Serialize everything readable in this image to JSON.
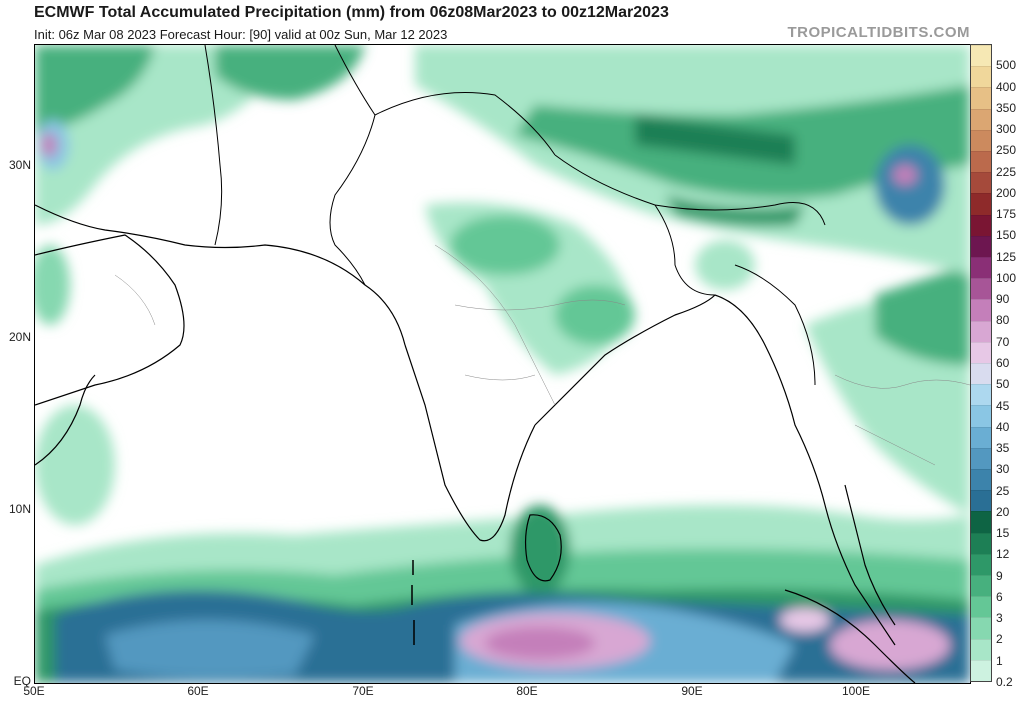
{
  "title": "ECMWF Total Accumulated Precipitation (mm) from 06z08Mar2023 to 00z12Mar2023",
  "subtitle": "Init: 06z Mar 08 2023   Forecast Hour: [90]   valid at 00z Sun, Mar 12 2023",
  "watermark": "TROPICALTIDBITS.COM",
  "lat_labels": [
    "30N",
    "20N",
    "10N",
    "EQ"
  ],
  "lon_labels": [
    "50E",
    "60E",
    "70E",
    "80E",
    "90E",
    "100E"
  ],
  "colorbar": {
    "levels": [
      "0.2",
      "1",
      "2",
      "3",
      "6",
      "9",
      "12",
      "15",
      "20",
      "25",
      "30",
      "35",
      "40",
      "45",
      "50",
      "60",
      "70",
      "80",
      "90",
      "100",
      "125",
      "150",
      "175",
      "200",
      "225",
      "250",
      "300",
      "350",
      "400",
      "500"
    ],
    "colors": [
      "#cdf2e0",
      "#a8e6c8",
      "#86d8b0",
      "#64c796",
      "#47b07e",
      "#2e9868",
      "#1d7f55",
      "#0e6444",
      "#2a6f95",
      "#3c83ab",
      "#5398c0",
      "#6aaed3",
      "#8ac6e4",
      "#add8ef",
      "#d9dcef",
      "#e7c8e6",
      "#d8a7d3",
      "#c47fba",
      "#a75597",
      "#8a2f76",
      "#6d1650",
      "#7a1533",
      "#8e2a2a",
      "#a54a3b",
      "#bb6a4c",
      "#cc8a5e",
      "#dba672",
      "#e7c086",
      "#f0d79b",
      "#f6e8b4"
    ]
  }
}
